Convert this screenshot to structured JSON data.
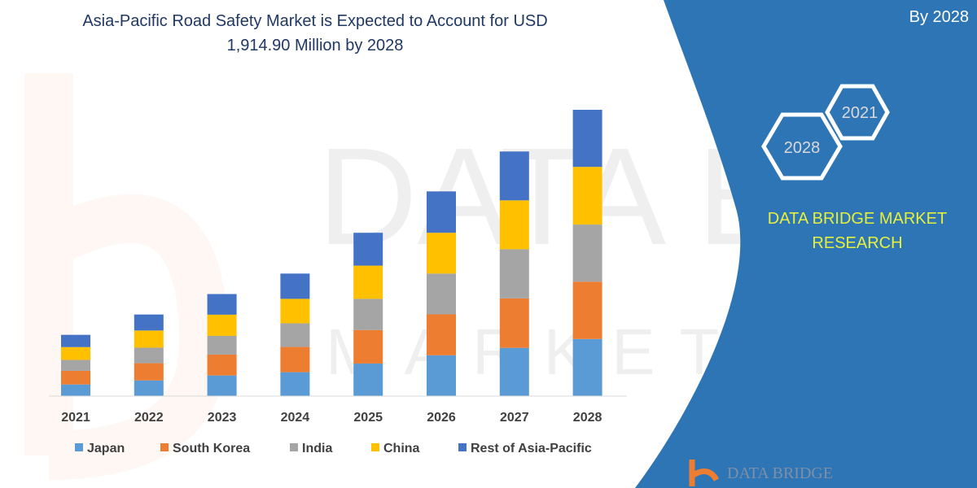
{
  "chart_data": {
    "type": "bar",
    "stacked": true,
    "title": "Asia-Pacific Road Safety Market is Expected to Account for USD 1,914.90 Million by 2028",
    "title_lines": [
      "Asia-Pacific Road Safety Market is Expected to Account for USD",
      "1,914.90 Million by 2028"
    ],
    "xlabel": "",
    "ylabel": "",
    "categories": [
      "2021",
      "2022",
      "2023",
      "2024",
      "2025",
      "2026",
      "2027",
      "2028"
    ],
    "series": [
      {
        "name": "Japan",
        "color": "#5B9BD5",
        "values": [
          78,
          105,
          138,
          160,
          218,
          273,
          323,
          382
        ]
      },
      {
        "name": "South Korea",
        "color": "#ED7D31",
        "values": [
          91,
          115,
          140,
          169,
          224,
          274,
          331,
          384
        ]
      },
      {
        "name": "India",
        "color": "#A5A5A5",
        "values": [
          73,
          104,
          125,
          158,
          209,
          273,
          329,
          382
        ]
      },
      {
        "name": "China",
        "color": "#FFC000",
        "values": [
          86,
          115,
          142,
          164,
          222,
          273,
          327,
          386
        ]
      },
      {
        "name": "Rest of Asia-Pacific",
        "color": "#4472C4",
        "values": [
          82,
          107,
          138,
          169,
          220,
          277,
          327,
          382
        ]
      }
    ],
    "ylim": [
      0,
      1916
    ],
    "y_axis_shown": false,
    "grid": false,
    "legend": "bottom"
  },
  "side_panel": {
    "header_partial": "By 2028",
    "hex_2021": "2021",
    "hex_2028": "2028",
    "brand_line1": "DATA BRIDGE MARKET",
    "brand_line2": "RESEARCH",
    "panel_color": "#2E75B6",
    "brand_color": "#E6F03C"
  },
  "watermark": {
    "text": "DATA BRIDGE",
    "sub": "MARKET RESEARCH"
  },
  "footer_logo": {
    "text": "DATA BRIDGE"
  }
}
